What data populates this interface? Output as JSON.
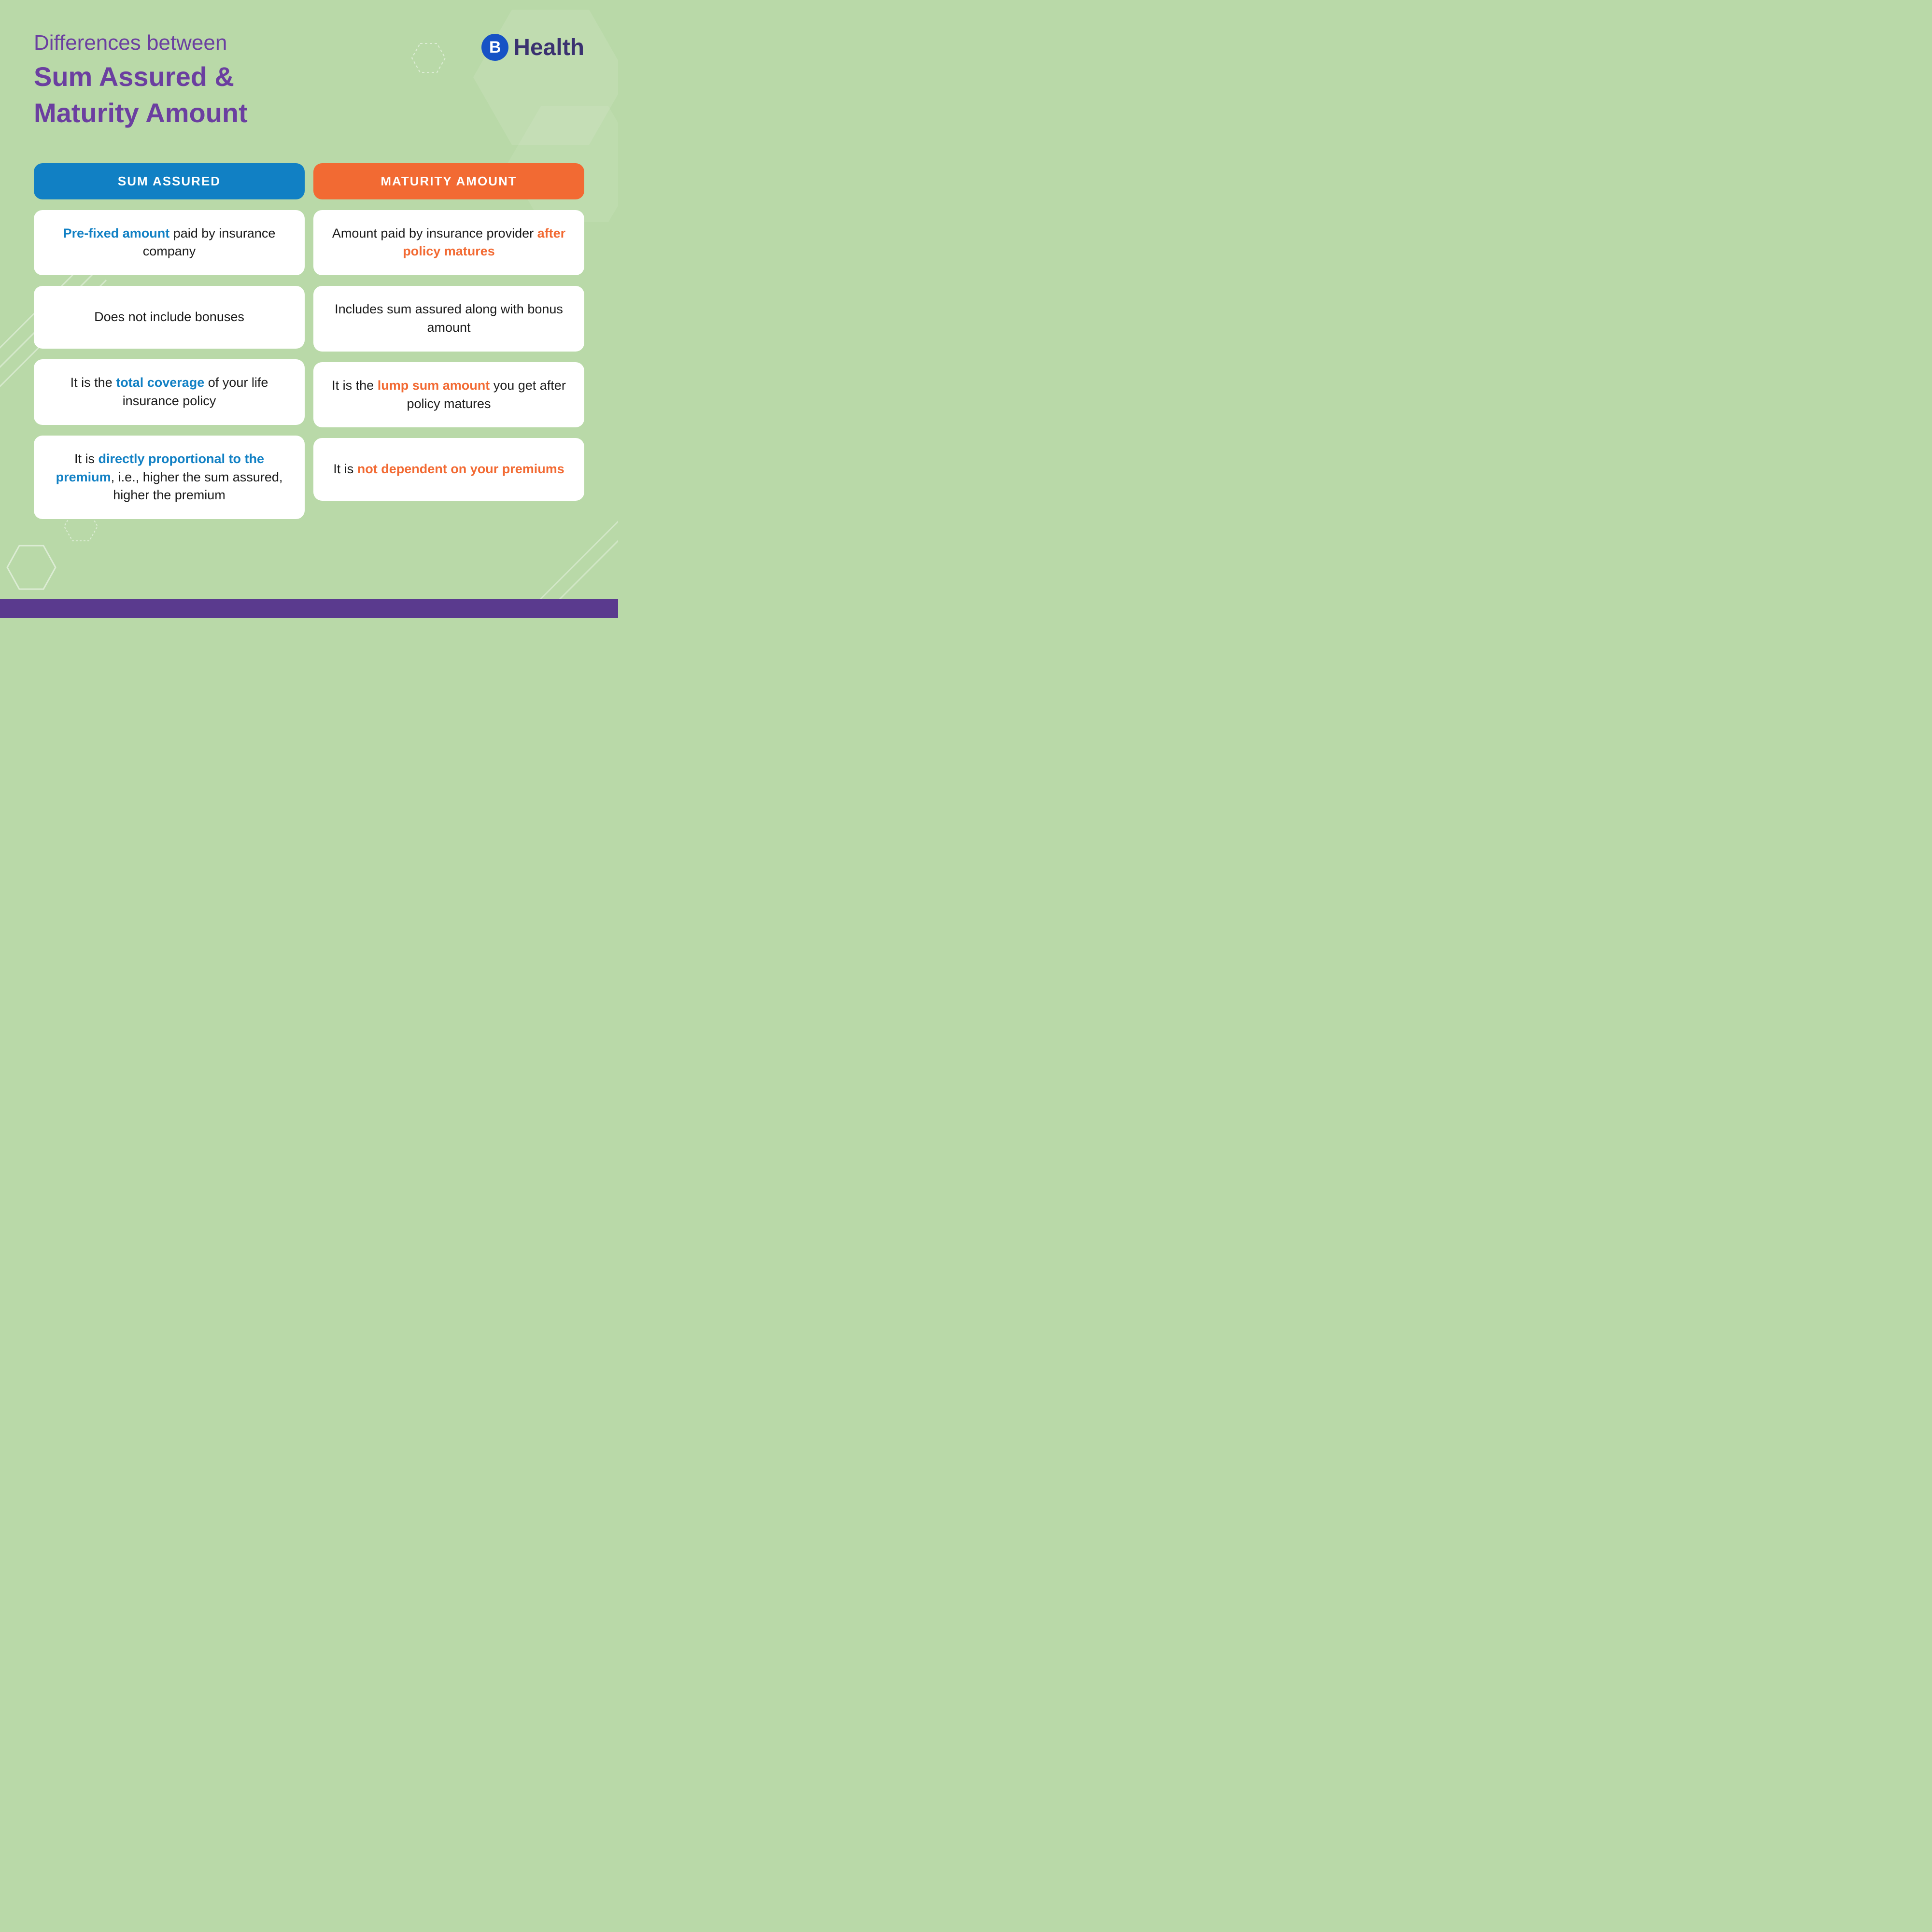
{
  "colors": {
    "background": "#b9d9a8",
    "title": "#6b3fa0",
    "header_left": "#1180c4",
    "header_right": "#f26a33",
    "cell_bg": "#ffffff",
    "text": "#1a1a1a",
    "highlight_blue": "#1180c4",
    "highlight_orange": "#f26a33",
    "footer": "#5a3a8e",
    "logo_circle": "#1652c5",
    "logo_text": "#3a3170"
  },
  "typography": {
    "title_small_size": 44,
    "title_big_size": 56,
    "header_size": 26,
    "cell_size": 27,
    "logo_text_size": 48
  },
  "header": {
    "title_line1": "Differences between",
    "title_line2": "Sum Assured &",
    "title_line3": "Maturity Amount"
  },
  "logo": {
    "letter": "B",
    "text": "Health"
  },
  "table": {
    "type": "comparison-table",
    "columns": [
      {
        "label": "SUM ASSURED",
        "color": "#1180c4",
        "highlight_class": "hl-blue"
      },
      {
        "label": "MATURITY AMOUNT",
        "color": "#f26a33",
        "highlight_class": "hl-orange"
      }
    ],
    "rows": [
      {
        "left": {
          "pre": "",
          "hl": "Pre-fixed amount",
          "post": " paid by insurance company"
        },
        "right": {
          "pre": "Amount paid by insurance provider ",
          "hl": "after policy matures",
          "post": ""
        }
      },
      {
        "left": {
          "pre": "Does not include bonuses",
          "hl": "",
          "post": ""
        },
        "right": {
          "pre": "Includes sum assured along with bonus amount",
          "hl": "",
          "post": ""
        }
      },
      {
        "left": {
          "pre": "It is the ",
          "hl": "total coverage",
          "post": " of your life insurance policy"
        },
        "right": {
          "pre": "It is the ",
          "hl": "lump sum amount",
          "post": " you get after policy matures"
        }
      },
      {
        "left": {
          "pre": "It is ",
          "hl": "directly proportional to the premium",
          "post": ", i.e., higher the sum assured, higher the premium"
        },
        "right": {
          "pre": "It is ",
          "hl": "not dependent on your premiums",
          "post": ""
        }
      }
    ]
  }
}
